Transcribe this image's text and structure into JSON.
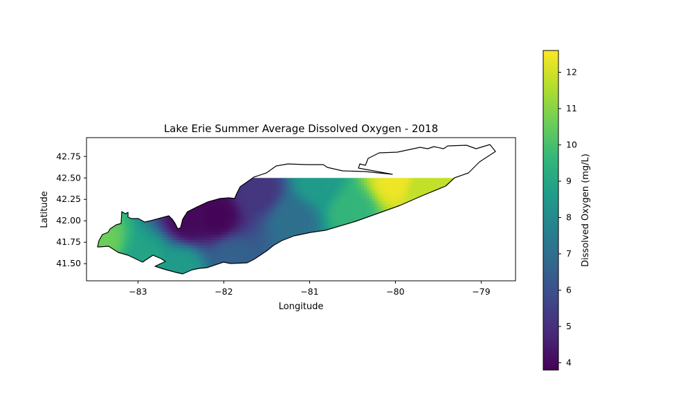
{
  "figure": {
    "title": "Lake Erie Summer Average Dissolved Oxygen - 2018",
    "xlabel": "Longitude",
    "ylabel": "Latitude"
  },
  "map": {
    "xlim": [
      -83.6,
      -78.6
    ],
    "ylim": [
      41.3,
      42.97
    ],
    "x_ticks": [
      -83,
      -82,
      -81,
      -80,
      -79
    ],
    "x_tick_labels": [
      "−83",
      "−82",
      "−81",
      "−80",
      "−79"
    ],
    "y_ticks": [
      41.5,
      41.75,
      42.0,
      42.25,
      42.5,
      42.75
    ],
    "y_tick_labels": [
      "41.50",
      "41.75",
      "42.00",
      "42.25",
      "42.50",
      "42.75"
    ],
    "fill_cutoff_latitude": 42.5,
    "shoreline_color": "#000000",
    "colormap": "viridis",
    "colormap_stops": [
      "#440154",
      "#482878",
      "#3e4989",
      "#31688e",
      "#26828e",
      "#1f9e89",
      "#35b779",
      "#6ece58",
      "#b5de2b",
      "#fde725"
    ]
  },
  "colorbar": {
    "label": "Dissolved Oxygen (mg/L)",
    "range": [
      3.8,
      12.6
    ],
    "ticks": [
      4,
      5,
      6,
      7,
      8,
      9,
      10,
      11,
      12
    ],
    "tick_labels": [
      "4",
      "5",
      "6",
      "7",
      "8",
      "9",
      "10",
      "11",
      "12"
    ]
  },
  "chart_data": {
    "type": "heatmap",
    "title": "Lake Erie Summer Average Dissolved Oxygen - 2018",
    "xlabel": "Longitude",
    "ylabel": "Latitude",
    "xlim": [
      -83.6,
      -78.6
    ],
    "ylim": [
      41.3,
      42.97
    ],
    "colorbar_label": "Dissolved Oxygen (mg/L)",
    "value_range": [
      3.8,
      12.6
    ],
    "sample_points": [
      {
        "lon": -83.45,
        "lat": 41.75,
        "value": 10.6
      },
      {
        "lon": -82.9,
        "lat": 41.55,
        "value": 8.9
      },
      {
        "lon": -82.5,
        "lat": 41.45,
        "value": 8.6
      },
      {
        "lon": -82.4,
        "lat": 42.0,
        "value": 4.0
      },
      {
        "lon": -82.1,
        "lat": 42.05,
        "value": 3.9
      },
      {
        "lon": -81.9,
        "lat": 41.55,
        "value": 6.5
      },
      {
        "lon": -81.6,
        "lat": 42.35,
        "value": 5.2
      },
      {
        "lon": -81.2,
        "lat": 42.0,
        "value": 7.0
      },
      {
        "lon": -80.9,
        "lat": 42.45,
        "value": 8.6
      },
      {
        "lon": -80.5,
        "lat": 42.1,
        "value": 9.6
      },
      {
        "lon": -80.0,
        "lat": 42.45,
        "value": 12.4
      },
      {
        "lon": -79.7,
        "lat": 42.35,
        "value": 11.8
      }
    ]
  }
}
